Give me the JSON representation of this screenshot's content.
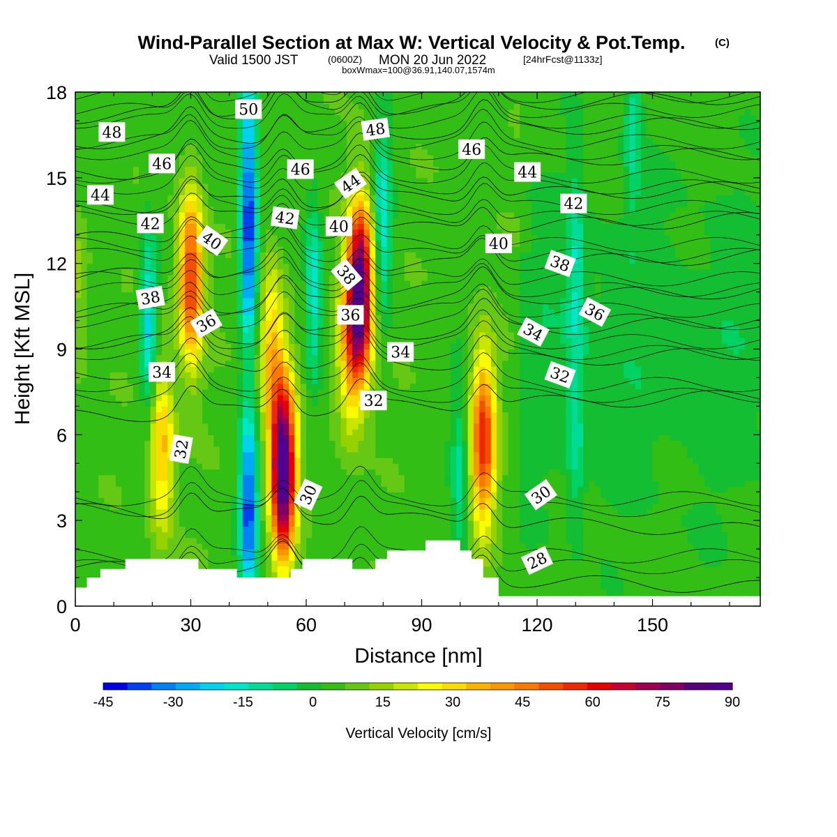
{
  "chart_data": {
    "type": "heatmap",
    "title": "Wind-Parallel Section at Max W: Vertical Velocity & Pot.Temp.",
    "title_suffix": "(C)",
    "subtitle": {
      "valid": "Valid 1500 JST",
      "utc": "(0600Z)",
      "date": "MON 20 Jun 2022",
      "fcst": "[24hrFcst@1133z]"
    },
    "note": "boxWmax=100@36.91,140.07,1574m",
    "xlabel": "Distance [nm]",
    "ylabel": "Height [Kft MSL]",
    "xlim": [
      0,
      178
    ],
    "ylim": [
      0,
      18
    ],
    "x_ticks": [
      "0",
      "30",
      "60",
      "90",
      "120",
      "150"
    ],
    "y_ticks": [
      "0",
      "3",
      "6",
      "9",
      "12",
      "15",
      "18"
    ],
    "colorbar": {
      "label": "Vertical Velocity [cm/s]",
      "min": -45,
      "max": 90,
      "step": 5,
      "tick_labels": [
        "-45",
        "-30",
        "-15",
        "0",
        "15",
        "30",
        "45",
        "60",
        "75",
        "90"
      ],
      "colors": [
        "#0000e6",
        "#0040f0",
        "#0080f5",
        "#00aaf5",
        "#00d2f0",
        "#00e6c8",
        "#00dc96",
        "#00d264",
        "#14be32",
        "#32be14",
        "#64c814",
        "#96d200",
        "#c8e600",
        "#fafa00",
        "#fadc00",
        "#fab400",
        "#fa9600",
        "#fa7800",
        "#f05000",
        "#f02800",
        "#e60000",
        "#c80032",
        "#a00050",
        "#820064",
        "#5a0078",
        "#50008c"
      ]
    },
    "updrafts": [
      {
        "x": 22.5,
        "h": 5.5,
        "peak": 30
      },
      {
        "x": 30,
        "h": 11.5,
        "peak": 50
      },
      {
        "x": 54,
        "h": 4.8,
        "peak": 88
      },
      {
        "x": 51,
        "h": 9,
        "peak": 28
      },
      {
        "x": 74,
        "h": 11,
        "peak": 85
      },
      {
        "x": 71,
        "h": 9,
        "peak": 25
      },
      {
        "x": 106,
        "h": 5.8,
        "peak": 50
      },
      {
        "x": 0,
        "h": 11,
        "peak": 10
      }
    ],
    "downdrafts": [
      {
        "x": 45,
        "h": 3.5,
        "peak": -42
      },
      {
        "x": 45,
        "h": 12.5,
        "peak": -40
      },
      {
        "x": 45,
        "h": 17,
        "peak": -25
      },
      {
        "x": 19,
        "h": 10,
        "peak": -25
      },
      {
        "x": 62,
        "h": 11,
        "peak": -22
      },
      {
        "x": 80,
        "h": 13.5,
        "peak": -22
      },
      {
        "x": 100,
        "h": 4.5,
        "peak": -15
      },
      {
        "x": 145,
        "h": 17,
        "peak": -15
      },
      {
        "x": 130,
        "h": 12,
        "peak": -14
      },
      {
        "x": 130,
        "h": 6,
        "peak": -12
      }
    ],
    "terrain": [
      {
        "x": 0,
        "h": 0.65
      },
      {
        "x": 3,
        "h": 1.0
      },
      {
        "x": 6.5,
        "h": 1.3
      },
      {
        "x": 13,
        "h": 1.65
      },
      {
        "x": 32,
        "h": 1.3
      },
      {
        "x": 42,
        "h": 1.0
      },
      {
        "x": 56,
        "h": 1.3
      },
      {
        "x": 59,
        "h": 1.65
      },
      {
        "x": 72,
        "h": 1.3
      },
      {
        "x": 78,
        "h": 1.65
      },
      {
        "x": 81,
        "h": 1.95
      },
      {
        "x": 91,
        "h": 2.3
      },
      {
        "x": 100,
        "h": 1.95
      },
      {
        "x": 103,
        "h": 1.65
      },
      {
        "x": 106,
        "h": 1.0
      },
      {
        "x": 110,
        "h": 0.35
      },
      {
        "x": 178,
        "h": 0.35
      }
    ],
    "pot_temp_contours": [
      {
        "value": 28,
        "base": 1.0
      },
      {
        "value": 30,
        "base": 3.0
      },
      {
        "value": 32,
        "base": 7.0
      },
      {
        "value": 34,
        "base": 8.5
      },
      {
        "value": 36,
        "base": 9.6
      },
      {
        "value": 38,
        "base": 10.7
      },
      {
        "value": 40,
        "base": 11.9
      },
      {
        "value": 42,
        "base": 13.2
      },
      {
        "value": 44,
        "base": 14.3
      },
      {
        "value": 46,
        "base": 15.5
      },
      {
        "value": 48,
        "base": 16.6
      },
      {
        "value": 50,
        "base": 17.5
      }
    ],
    "contour_labels": [
      {
        "text": "48",
        "x": 9.5,
        "h": 16.6,
        "angle": 0
      },
      {
        "text": "46",
        "x": 22.5,
        "h": 15.5,
        "angle": 0
      },
      {
        "text": "44",
        "x": 6.5,
        "h": 14.4,
        "angle": 0
      },
      {
        "text": "42",
        "x": 19.5,
        "h": 13.4,
        "angle": 0
      },
      {
        "text": "40",
        "x": 35.5,
        "h": 12.8,
        "angle": 35
      },
      {
        "text": "38",
        "x": 19.5,
        "h": 10.8,
        "angle": -10
      },
      {
        "text": "36",
        "x": 34,
        "h": 9.9,
        "angle": -30
      },
      {
        "text": "34",
        "x": 22.5,
        "h": 8.2,
        "angle": 0
      },
      {
        "text": "32",
        "x": 27.5,
        "h": 5.5,
        "angle": -80
      },
      {
        "text": "50",
        "x": 45,
        "h": 17.4,
        "angle": 0
      },
      {
        "text": "46",
        "x": 58.5,
        "h": 15.3,
        "angle": 0
      },
      {
        "text": "42",
        "x": 54.5,
        "h": 13.6,
        "angle": 8
      },
      {
        "text": "48",
        "x": 78,
        "h": 16.7,
        "angle": -8
      },
      {
        "text": "44",
        "x": 71.5,
        "h": 14.8,
        "angle": -35
      },
      {
        "text": "40",
        "x": 68.5,
        "h": 13.3,
        "angle": 0
      },
      {
        "text": "38",
        "x": 70.5,
        "h": 11.6,
        "angle": 50
      },
      {
        "text": "36",
        "x": 71.5,
        "h": 10.2,
        "angle": 0
      },
      {
        "text": "34",
        "x": 84.5,
        "h": 8.9,
        "angle": 0
      },
      {
        "text": "32",
        "x": 77.5,
        "h": 7.2,
        "angle": 0
      },
      {
        "text": "30",
        "x": 60.5,
        "h": 3.9,
        "angle": -65
      },
      {
        "text": "46",
        "x": 103,
        "h": 16.0,
        "angle": 0
      },
      {
        "text": "44",
        "x": 117.5,
        "h": 15.2,
        "angle": 0
      },
      {
        "text": "42",
        "x": 129.5,
        "h": 14.1,
        "angle": 0
      },
      {
        "text": "40",
        "x": 110,
        "h": 12.7,
        "angle": 0
      },
      {
        "text": "38",
        "x": 126,
        "h": 12.0,
        "angle": 20
      },
      {
        "text": "36",
        "x": 135,
        "h": 10.3,
        "angle": 28
      },
      {
        "text": "34",
        "x": 119,
        "h": 9.6,
        "angle": 28
      },
      {
        "text": "32",
        "x": 126,
        "h": 8.1,
        "angle": 20
      },
      {
        "text": "30",
        "x": 121,
        "h": 3.9,
        "angle": -35
      },
      {
        "text": "28",
        "x": 120,
        "h": 1.6,
        "angle": -25
      }
    ]
  }
}
